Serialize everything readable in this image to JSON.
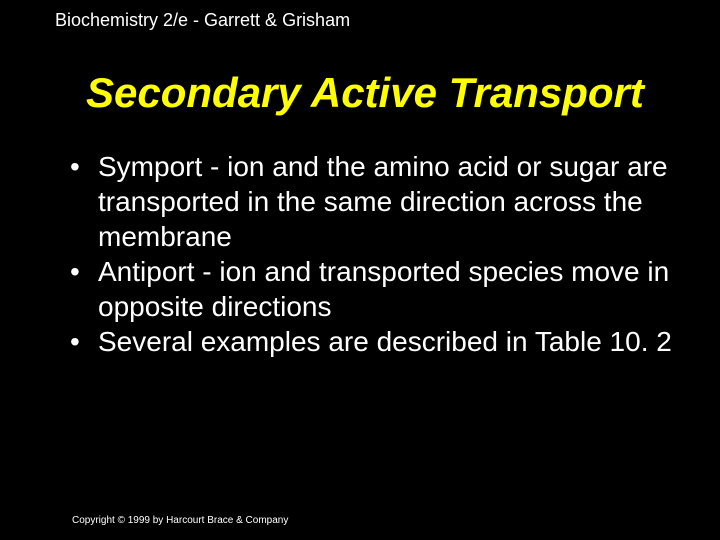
{
  "header": {
    "text": "Biochemistry 2/e - Garrett & Grisham"
  },
  "title": {
    "text": "Secondary Active Transport"
  },
  "bullets": [
    {
      "text": "Symport - ion and the amino acid or sugar are transported in the same direction across the membrane"
    },
    {
      "text": "Antiport - ion and transported species move in opposite directions"
    },
    {
      "text": "Several examples are described in Table 10. 2"
    }
  ],
  "footer": {
    "text": "Copyright © 1999 by Harcourt Brace & Company"
  },
  "colors": {
    "background": "#000000",
    "header_text": "#ffffff",
    "title_text": "#ffff00",
    "bullet_text": "#ffffff",
    "footer_text": "#ffffff"
  },
  "typography": {
    "header_fontsize": 18,
    "title_fontsize": 42,
    "title_style": "italic",
    "title_weight": "bold",
    "bullet_fontsize": 28,
    "footer_fontsize": 10,
    "font_family": "Arial"
  }
}
